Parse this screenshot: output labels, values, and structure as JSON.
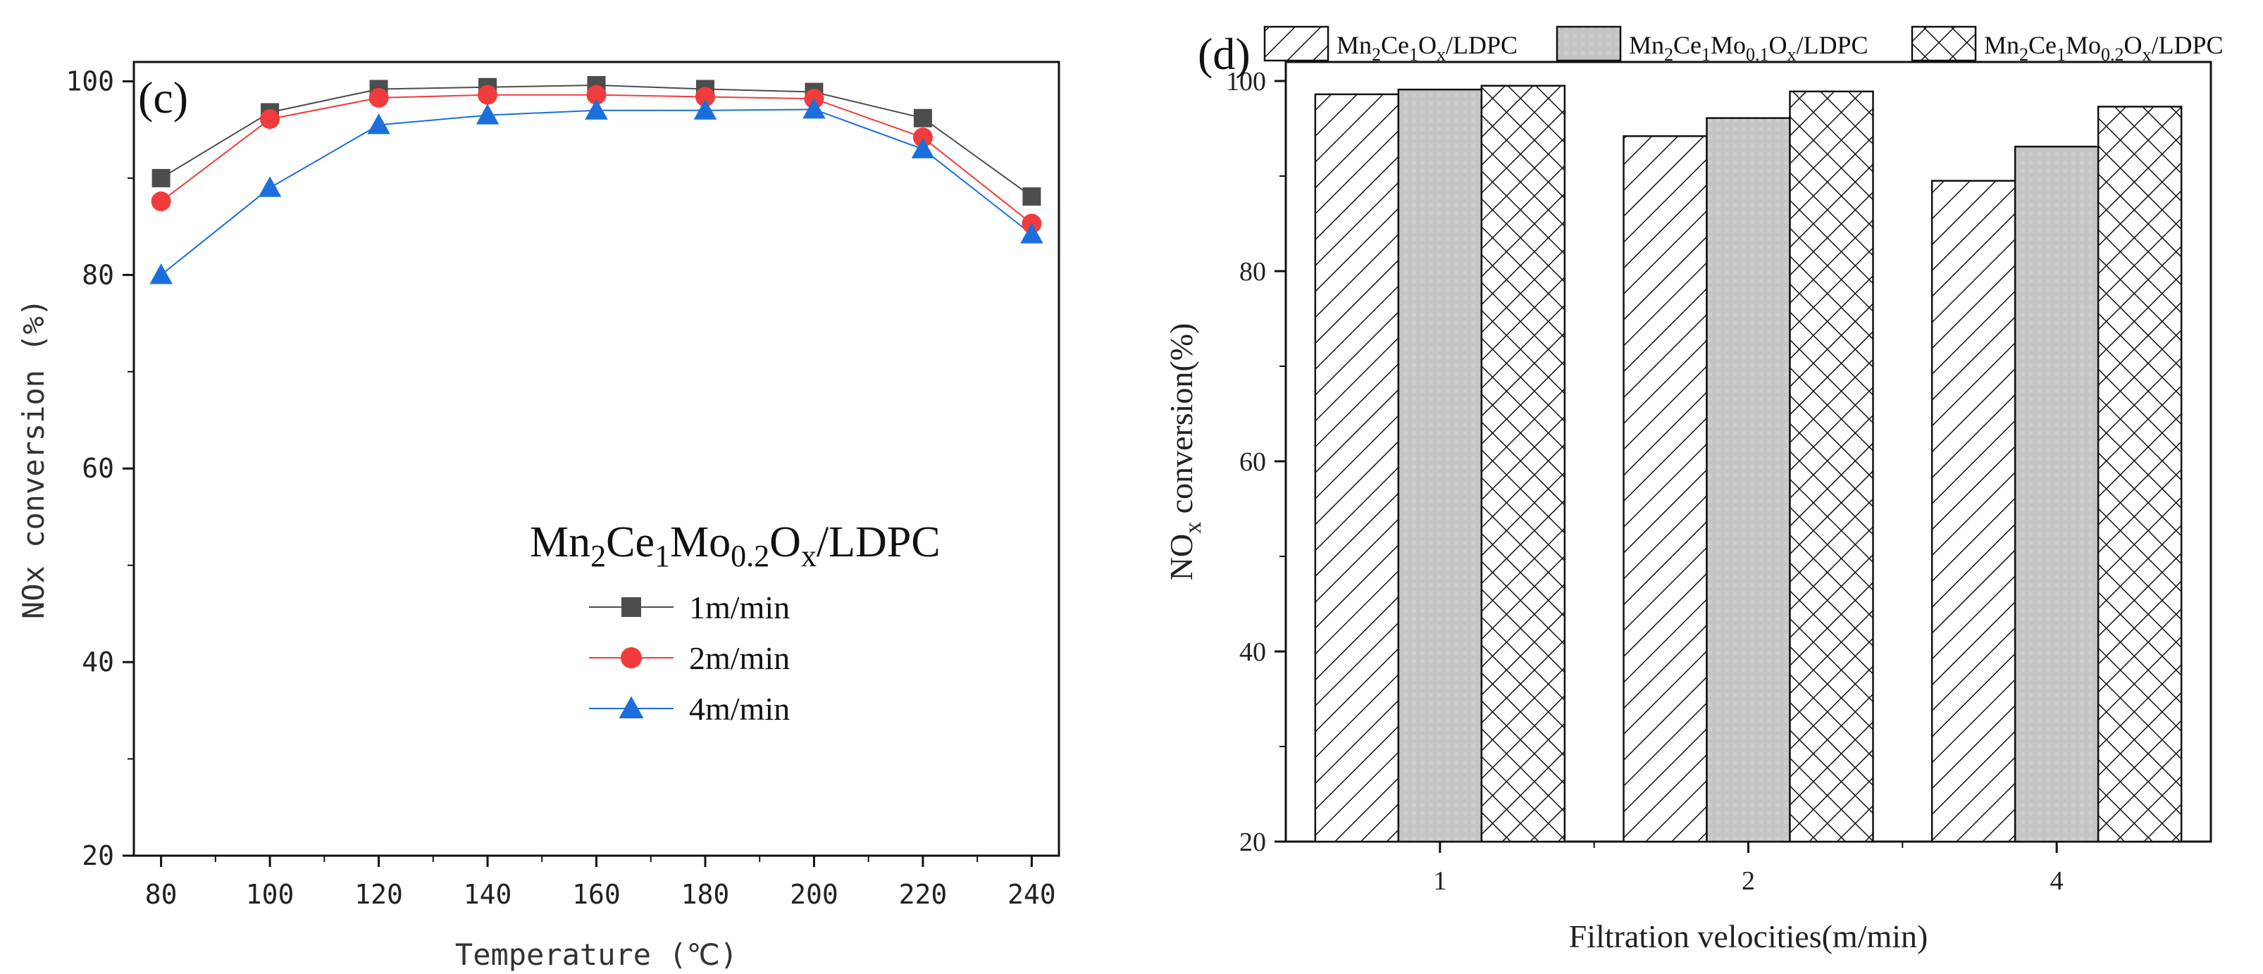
{
  "chart_data": [
    {
      "panel": "(c)",
      "type": "line",
      "xlabel": "Temperature (℃)",
      "ylabel": "NOx conversion (%)",
      "xlim": [
        75,
        245
      ],
      "ylim": [
        20,
        102
      ],
      "x_ticks": [
        80,
        100,
        120,
        140,
        160,
        180,
        200,
        220,
        240
      ],
      "y_ticks": [
        20,
        40,
        60,
        80,
        100
      ],
      "x": [
        80,
        100,
        120,
        140,
        160,
        180,
        200,
        220,
        240
      ],
      "legend_title": {
        "base1": "Mn",
        "sub1": "2",
        "base2": "Ce",
        "sub2": "1",
        "base3": "Mo",
        "sub3": "0.2",
        "base4": "O",
        "sub4": "x",
        "tail": "/LDPC"
      },
      "legend_position": "center-left",
      "series": [
        {
          "name": "1m/min",
          "marker": "square",
          "color": "#4d4d4d",
          "values": [
            90,
            96.8,
            99.2,
            99.4,
            99.6,
            99.2,
            98.9,
            96.2,
            88.1
          ]
        },
        {
          "name": "2m/min",
          "marker": "circle",
          "color": "#f03c3c",
          "values": [
            87.6,
            96.1,
            98.3,
            98.6,
            98.6,
            98.4,
            98.2,
            94.2,
            85.3
          ]
        },
        {
          "name": "4m/min",
          "marker": "triangle",
          "color": "#1a6fdc",
          "values": [
            80,
            89,
            95.5,
            96.5,
            97,
            97,
            97.1,
            93,
            84.2
          ]
        }
      ]
    },
    {
      "panel": "(d)",
      "type": "bar",
      "xlabel": "Filtration velocities(m/min)",
      "ylabel_base": "NO",
      "ylabel_sub": "x",
      "ylabel_tail": " conversion(%)",
      "categories": [
        "1",
        "2",
        "4"
      ],
      "ylim": [
        20,
        102
      ],
      "y_ticks": [
        20,
        40,
        60,
        80,
        100
      ],
      "legend_position": "top",
      "series": [
        {
          "legend": {
            "base1": "Mn",
            "sub1": "2",
            "base2": "Ce",
            "sub2": "1",
            "base3": "O",
            "sub3": "x",
            "tail": "/LDPC"
          },
          "pattern": "diagonal",
          "values": [
            98.6,
            94.2,
            89.5
          ]
        },
        {
          "legend": {
            "base1": "Mn",
            "sub1": "2",
            "base2": "Ce",
            "sub2": "1",
            "base3": "Mo",
            "sub3": "0.1",
            "base4": "O",
            "sub4": "x",
            "tail": "/LDPC"
          },
          "pattern": "gray",
          "values": [
            99.1,
            96.1,
            93.1
          ]
        },
        {
          "legend": {
            "base1": "Mn",
            "sub1": "2",
            "base2": "Ce",
            "sub2": "1",
            "base3": "Mo",
            "sub3": "0.2",
            "base4": "O",
            "sub4": "x",
            "tail": "/LDPC"
          },
          "pattern": "crosshatch",
          "values": [
            99.5,
            98.9,
            97.3
          ]
        }
      ]
    }
  ]
}
